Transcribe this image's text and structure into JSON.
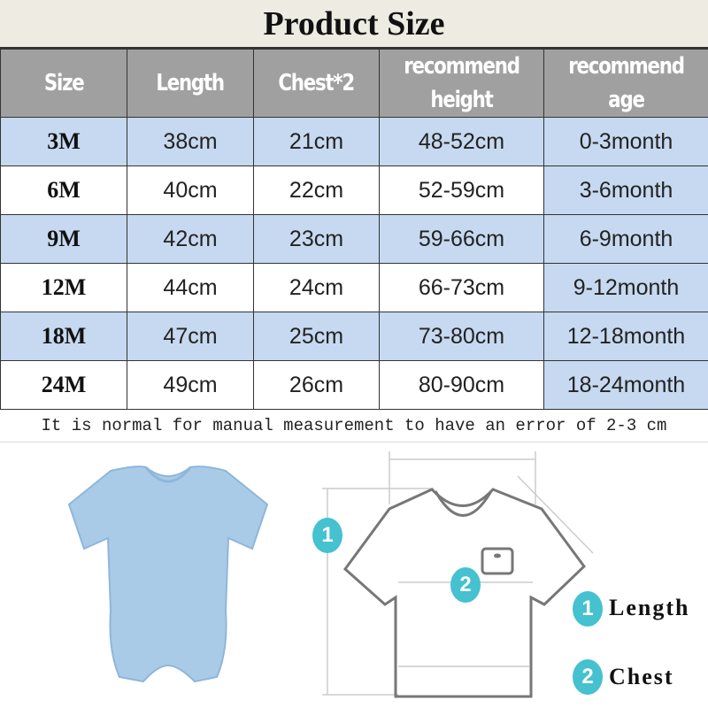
{
  "title": "Product Size",
  "headers": [
    "Size",
    "Length",
    "Chest*2",
    "recommend height",
    "recommend age"
  ],
  "rows": [
    {
      "size": "3M",
      "length": "38cm",
      "chest": "21cm",
      "height": "48-52cm",
      "age": "0-3month"
    },
    {
      "size": "6M",
      "length": "40cm",
      "chest": "22cm",
      "height": "52-59cm",
      "age": "3-6month"
    },
    {
      "size": "9M",
      "length": "42cm",
      "chest": "23cm",
      "height": "59-66cm",
      "age": "6-9month"
    },
    {
      "size": "12M",
      "length": "44cm",
      "chest": "24cm",
      "height": "66-73cm",
      "age": "9-12month"
    },
    {
      "size": "18M",
      "length": "47cm",
      "chest": "25cm",
      "height": "73-80cm",
      "age": "12-18month"
    },
    {
      "size": "24M",
      "length": "49cm",
      "chest": "26cm",
      "height": "80-90cm",
      "age": "18-24month"
    }
  ],
  "note": "It is normal for manual measurement to have an error of 2-3 cm",
  "diagram": {
    "badge1": "1",
    "badge2": "2"
  },
  "legend": [
    {
      "num": "1",
      "label": "Length"
    },
    {
      "num": "2",
      "label": "Chest"
    }
  ],
  "colors": {
    "header": "#a0a0a0",
    "row_blue": "#c6d9f0",
    "badge": "#45c1cf",
    "onesie": "#a9cbe8"
  }
}
